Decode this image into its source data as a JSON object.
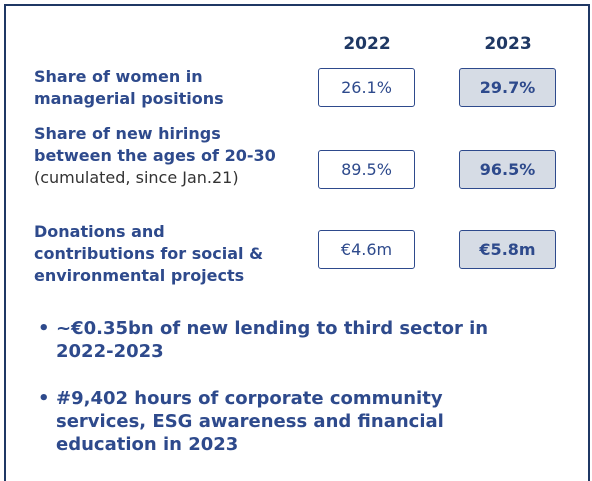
{
  "table": {
    "columns": [
      "2022",
      "2023"
    ],
    "rows": [
      {
        "label_lines": [
          "Share of women in",
          "managerial positions"
        ],
        "values": [
          "26.1%",
          "29.7%"
        ]
      },
      {
        "label_lines": [
          "Share of new hirings",
          "between the ages of 20-30"
        ],
        "note": "(cumulated, since Jan.21)",
        "values": [
          "89.5%",
          "96.5%"
        ]
      },
      {
        "label_lines": [
          "Donations and",
          "contributions for social &",
          "environmental projects"
        ],
        "values": [
          "€4.6m",
          "€5.8m"
        ]
      }
    ]
  },
  "bullets": [
    {
      "lines": [
        "~€0.35bn of new lending to third sector in",
        "2022-2023"
      ]
    },
    {
      "lines": [
        "#9,402 hours of corporate community",
        "services, ESG awareness and financial",
        "education in 2023"
      ]
    }
  ]
}
